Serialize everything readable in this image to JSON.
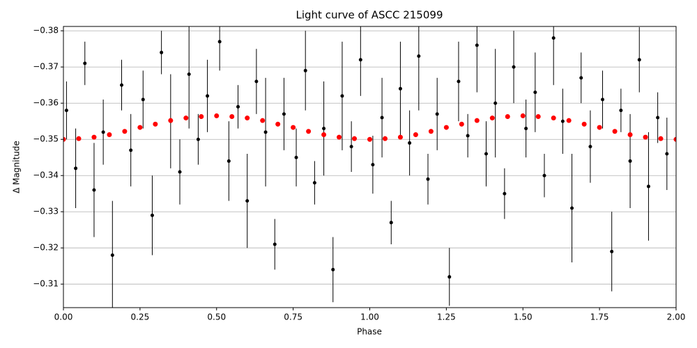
{
  "chart_data": {
    "type": "errorbar-scatter",
    "title": "Light curve of ASCC 215099",
    "x_label": "Phase",
    "y_label": "Δ Magnitude",
    "xlim": [
      0,
      2
    ],
    "ylim": [
      -0.3035,
      -0.3812
    ],
    "xticks": [
      {
        "value": 0,
        "label": "0.00"
      },
      {
        "value": 0.25,
        "label": "0.25"
      },
      {
        "value": 0.5,
        "label": "0.50"
      },
      {
        "value": 0.75,
        "label": "0.75"
      },
      {
        "value": 1,
        "label": "1.00"
      },
      {
        "value": 1.25,
        "label": "1.25"
      },
      {
        "value": 1.5,
        "label": "1.50"
      },
      {
        "value": 1.75,
        "label": "1.75"
      },
      {
        "value": 2,
        "label": "2.00"
      }
    ],
    "yticks": [
      {
        "value": -0.38,
        "label": "−0.38"
      },
      {
        "value": -0.37,
        "label": "−0.37"
      },
      {
        "value": -0.36,
        "label": "−0.36"
      },
      {
        "value": -0.35,
        "label": "−0.35"
      },
      {
        "value": -0.34,
        "label": "−0.34"
      },
      {
        "value": -0.33,
        "label": "−0.33"
      },
      {
        "value": -0.32,
        "label": "−0.32"
      },
      {
        "value": -0.31,
        "label": "−0.31"
      }
    ],
    "grid": "y",
    "series": [
      {
        "color": "#000000",
        "x": [
          0.01,
          0.04,
          0.07,
          0.1,
          0.13,
          0.16,
          0.19,
          0.22,
          0.26,
          0.29,
          0.32,
          0.35,
          0.38,
          0.41,
          0.44,
          0.47,
          0.51,
          0.54,
          0.57,
          0.6,
          0.63,
          0.66,
          0.69,
          0.72,
          0.76,
          0.79,
          0.82,
          0.85,
          0.88,
          0.91,
          0.94,
          0.97,
          1.01,
          1.04,
          1.07,
          1.1,
          1.13,
          1.16,
          1.19,
          1.22,
          1.26,
          1.29,
          1.32,
          1.35,
          1.38,
          1.41,
          1.44,
          1.47,
          1.51,
          1.54,
          1.57,
          1.6,
          1.63,
          1.66,
          1.69,
          1.72,
          1.76,
          1.79,
          1.82,
          1.85,
          1.88,
          1.91,
          1.94,
          1.97
        ],
        "values": [
          -0.358,
          -0.342,
          -0.371,
          -0.336,
          -0.352,
          -0.318,
          -0.365,
          -0.347,
          -0.361,
          -0.329,
          -0.374,
          -0.355,
          -0.341,
          -0.368,
          -0.35,
          -0.362,
          -0.377,
          -0.344,
          -0.359,
          -0.333,
          -0.366,
          -0.352,
          -0.321,
          -0.357,
          -0.345,
          -0.369,
          -0.338,
          -0.353,
          -0.314,
          -0.362,
          -0.348,
          -0.372,
          -0.343,
          -0.356,
          -0.327,
          -0.364,
          -0.349,
          -0.373,
          -0.339,
          -0.357,
          -0.312,
          -0.366,
          -0.351,
          -0.376,
          -0.346,
          -0.36,
          -0.335,
          -0.37,
          -0.353,
          -0.363,
          -0.34,
          -0.378,
          -0.355,
          -0.331,
          -0.367,
          -0.348,
          -0.361,
          -0.319,
          -0.358,
          -0.344,
          -0.372,
          -0.337,
          -0.356,
          -0.346
        ],
        "errors": [
          0.008,
          0.011,
          0.006,
          0.013,
          0.009,
          0.015,
          0.007,
          0.01,
          0.008,
          0.011,
          0.006,
          0.013,
          0.009,
          0.015,
          0.007,
          0.01,
          0.008,
          0.011,
          0.006,
          0.013,
          0.009,
          0.015,
          0.007,
          0.01,
          0.008,
          0.011,
          0.006,
          0.013,
          0.009,
          0.015,
          0.007,
          0.01,
          0.008,
          0.011,
          0.006,
          0.013,
          0.009,
          0.015,
          0.007,
          0.01,
          0.008,
          0.011,
          0.006,
          0.013,
          0.009,
          0.015,
          0.007,
          0.01,
          0.008,
          0.011,
          0.006,
          0.013,
          0.009,
          0.015,
          0.007,
          0.01,
          0.008,
          0.011,
          0.006,
          0.013,
          0.009,
          0.015,
          0.007,
          0.01
        ]
      },
      {
        "color": "#ff0000",
        "x": [
          0,
          0.05,
          0.1,
          0.15,
          0.2,
          0.25,
          0.3,
          0.35,
          0.4,
          0.45,
          0.5,
          0.55,
          0.6,
          0.65,
          0.7,
          0.75,
          0.8,
          0.85,
          0.9,
          0.95,
          1,
          1.05,
          1.1,
          1.15,
          1.2,
          1.25,
          1.3,
          1.35,
          1.4,
          1.45,
          1.5,
          1.55,
          1.6,
          1.65,
          1.7,
          1.75,
          1.8,
          1.85,
          1.9,
          1.95,
          2
        ],
        "values": [
          -0.35,
          -0.3502,
          -0.3506,
          -0.3513,
          -0.3522,
          -0.3533,
          -0.3542,
          -0.3552,
          -0.3559,
          -0.3563,
          -0.3565,
          -0.3563,
          -0.3559,
          -0.3552,
          -0.3542,
          -0.3533,
          -0.3522,
          -0.3513,
          -0.3506,
          -0.3502,
          -0.35,
          -0.3502,
          -0.3506,
          -0.3513,
          -0.3522,
          -0.3533,
          -0.3542,
          -0.3552,
          -0.3559,
          -0.3563,
          -0.3565,
          -0.3563,
          -0.3559,
          -0.3552,
          -0.3542,
          -0.3533,
          -0.3522,
          -0.3513,
          -0.3506,
          -0.3502,
          -0.35
        ]
      }
    ]
  }
}
